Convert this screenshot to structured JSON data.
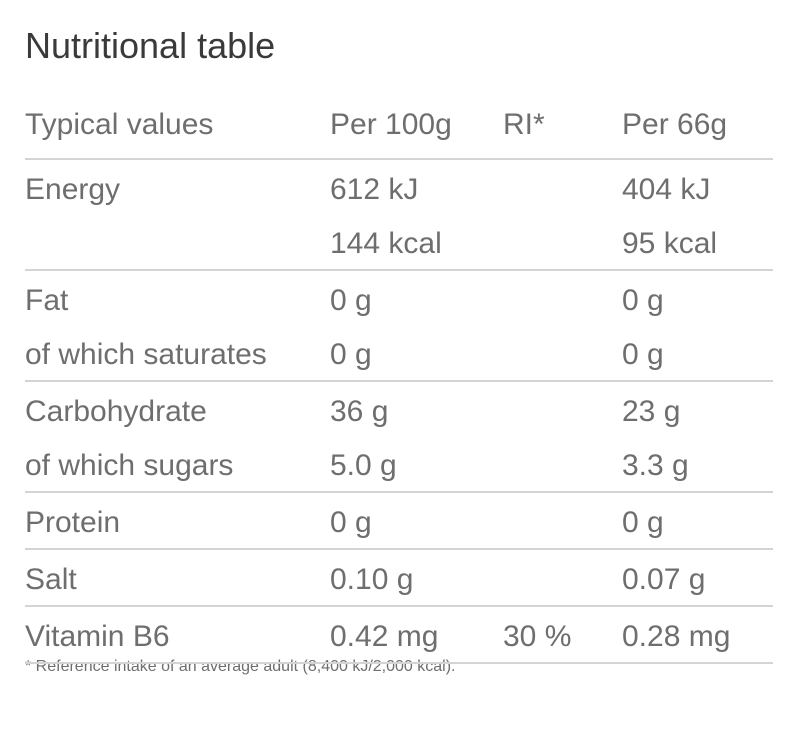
{
  "title": "Nutritional table",
  "table": {
    "header": {
      "nutrient": "Typical values",
      "per_100g": "Per 100g",
      "ri": "RI*",
      "per_66g": "Per 66g"
    },
    "groups": [
      [
        {
          "nutrient": "Energy",
          "per_100g": "612 kJ",
          "per_66g": "404 kJ"
        },
        {
          "per_100g": "144 kcal",
          "per_66g": "95 kcal"
        }
      ],
      [
        {
          "nutrient": "Fat",
          "per_100g": "0 g",
          "per_66g": "0 g"
        },
        {
          "nutrient": "of which saturates",
          "per_100g": "0 g",
          "per_66g": "0 g"
        }
      ],
      [
        {
          "nutrient": "Carbohydrate",
          "per_100g": "36 g",
          "per_66g": "23 g"
        },
        {
          "nutrient": "of which sugars",
          "per_100g": "5.0 g",
          "per_66g": "3.3 g"
        }
      ],
      [
        {
          "nutrient": "Protein",
          "per_100g": "0 g",
          "per_66g": "0 g"
        }
      ],
      [
        {
          "nutrient": "Salt",
          "per_100g": "0.10 g",
          "per_66g": "0.07 g"
        }
      ],
      [
        {
          "nutrient": "Vitamin B6",
          "per_100g": "0.42 mg",
          "ri": "30 %",
          "per_66g": "0.28 mg"
        }
      ]
    ]
  },
  "footnote": "* Reference intake of an average adult (8,400 kJ/2,000 kcal)."
}
